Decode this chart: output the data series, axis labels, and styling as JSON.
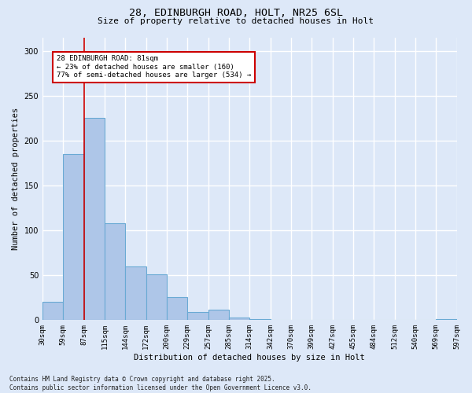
{
  "title_line1": "28, EDINBURGH ROAD, HOLT, NR25 6SL",
  "title_line2": "Size of property relative to detached houses in Holt",
  "xlabel": "Distribution of detached houses by size in Holt",
  "ylabel": "Number of detached properties",
  "bar_values": [
    20,
    185,
    225,
    108,
    60,
    51,
    26,
    9,
    12,
    3,
    1,
    0,
    0,
    0,
    0,
    0,
    0,
    0,
    0,
    1
  ],
  "bin_labels": [
    "30sqm",
    "59sqm",
    "87sqm",
    "115sqm",
    "144sqm",
    "172sqm",
    "200sqm",
    "229sqm",
    "257sqm",
    "285sqm",
    "314sqm",
    "342sqm",
    "370sqm",
    "399sqm",
    "427sqm",
    "455sqm",
    "484sqm",
    "512sqm",
    "540sqm",
    "569sqm",
    "597sqm"
  ],
  "bar_color": "#aec6e8",
  "bar_edge_color": "#6aaad4",
  "vline_x": 1.5,
  "vline_color": "#cc0000",
  "annotation_text": "28 EDINBURGH ROAD: 81sqm\n← 23% of detached houses are smaller (160)\n77% of semi-detached houses are larger (534) →",
  "annotation_box_color": "#ffffff",
  "annotation_box_edge_color": "#cc0000",
  "ylim": [
    0,
    315
  ],
  "background_color": "#dde8f8",
  "grid_color": "#ffffff",
  "footer_text": "Contains HM Land Registry data © Crown copyright and database right 2025.\nContains public sector information licensed under the Open Government Licence v3.0."
}
